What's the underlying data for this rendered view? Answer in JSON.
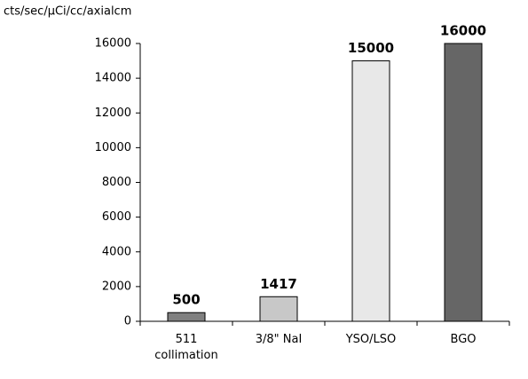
{
  "chart_data": {
    "type": "bar",
    "y_label": "cts/sec/µCi/cc/axialcm",
    "categories": [
      [
        "511",
        "collimation"
      ],
      [
        "3/8\" NaI"
      ],
      [
        "YSO/LSO"
      ],
      [
        "BGO"
      ]
    ],
    "values": [
      500,
      1417,
      15000,
      16000
    ],
    "colors": [
      "#808080",
      "#c8c8c8",
      "#e8e8e8",
      "#666666"
    ],
    "ylim": [
      0,
      16000
    ],
    "yticks": [
      0,
      2000,
      4000,
      6000,
      8000,
      10000,
      12000,
      14000,
      16000
    ],
    "grid": false
  }
}
